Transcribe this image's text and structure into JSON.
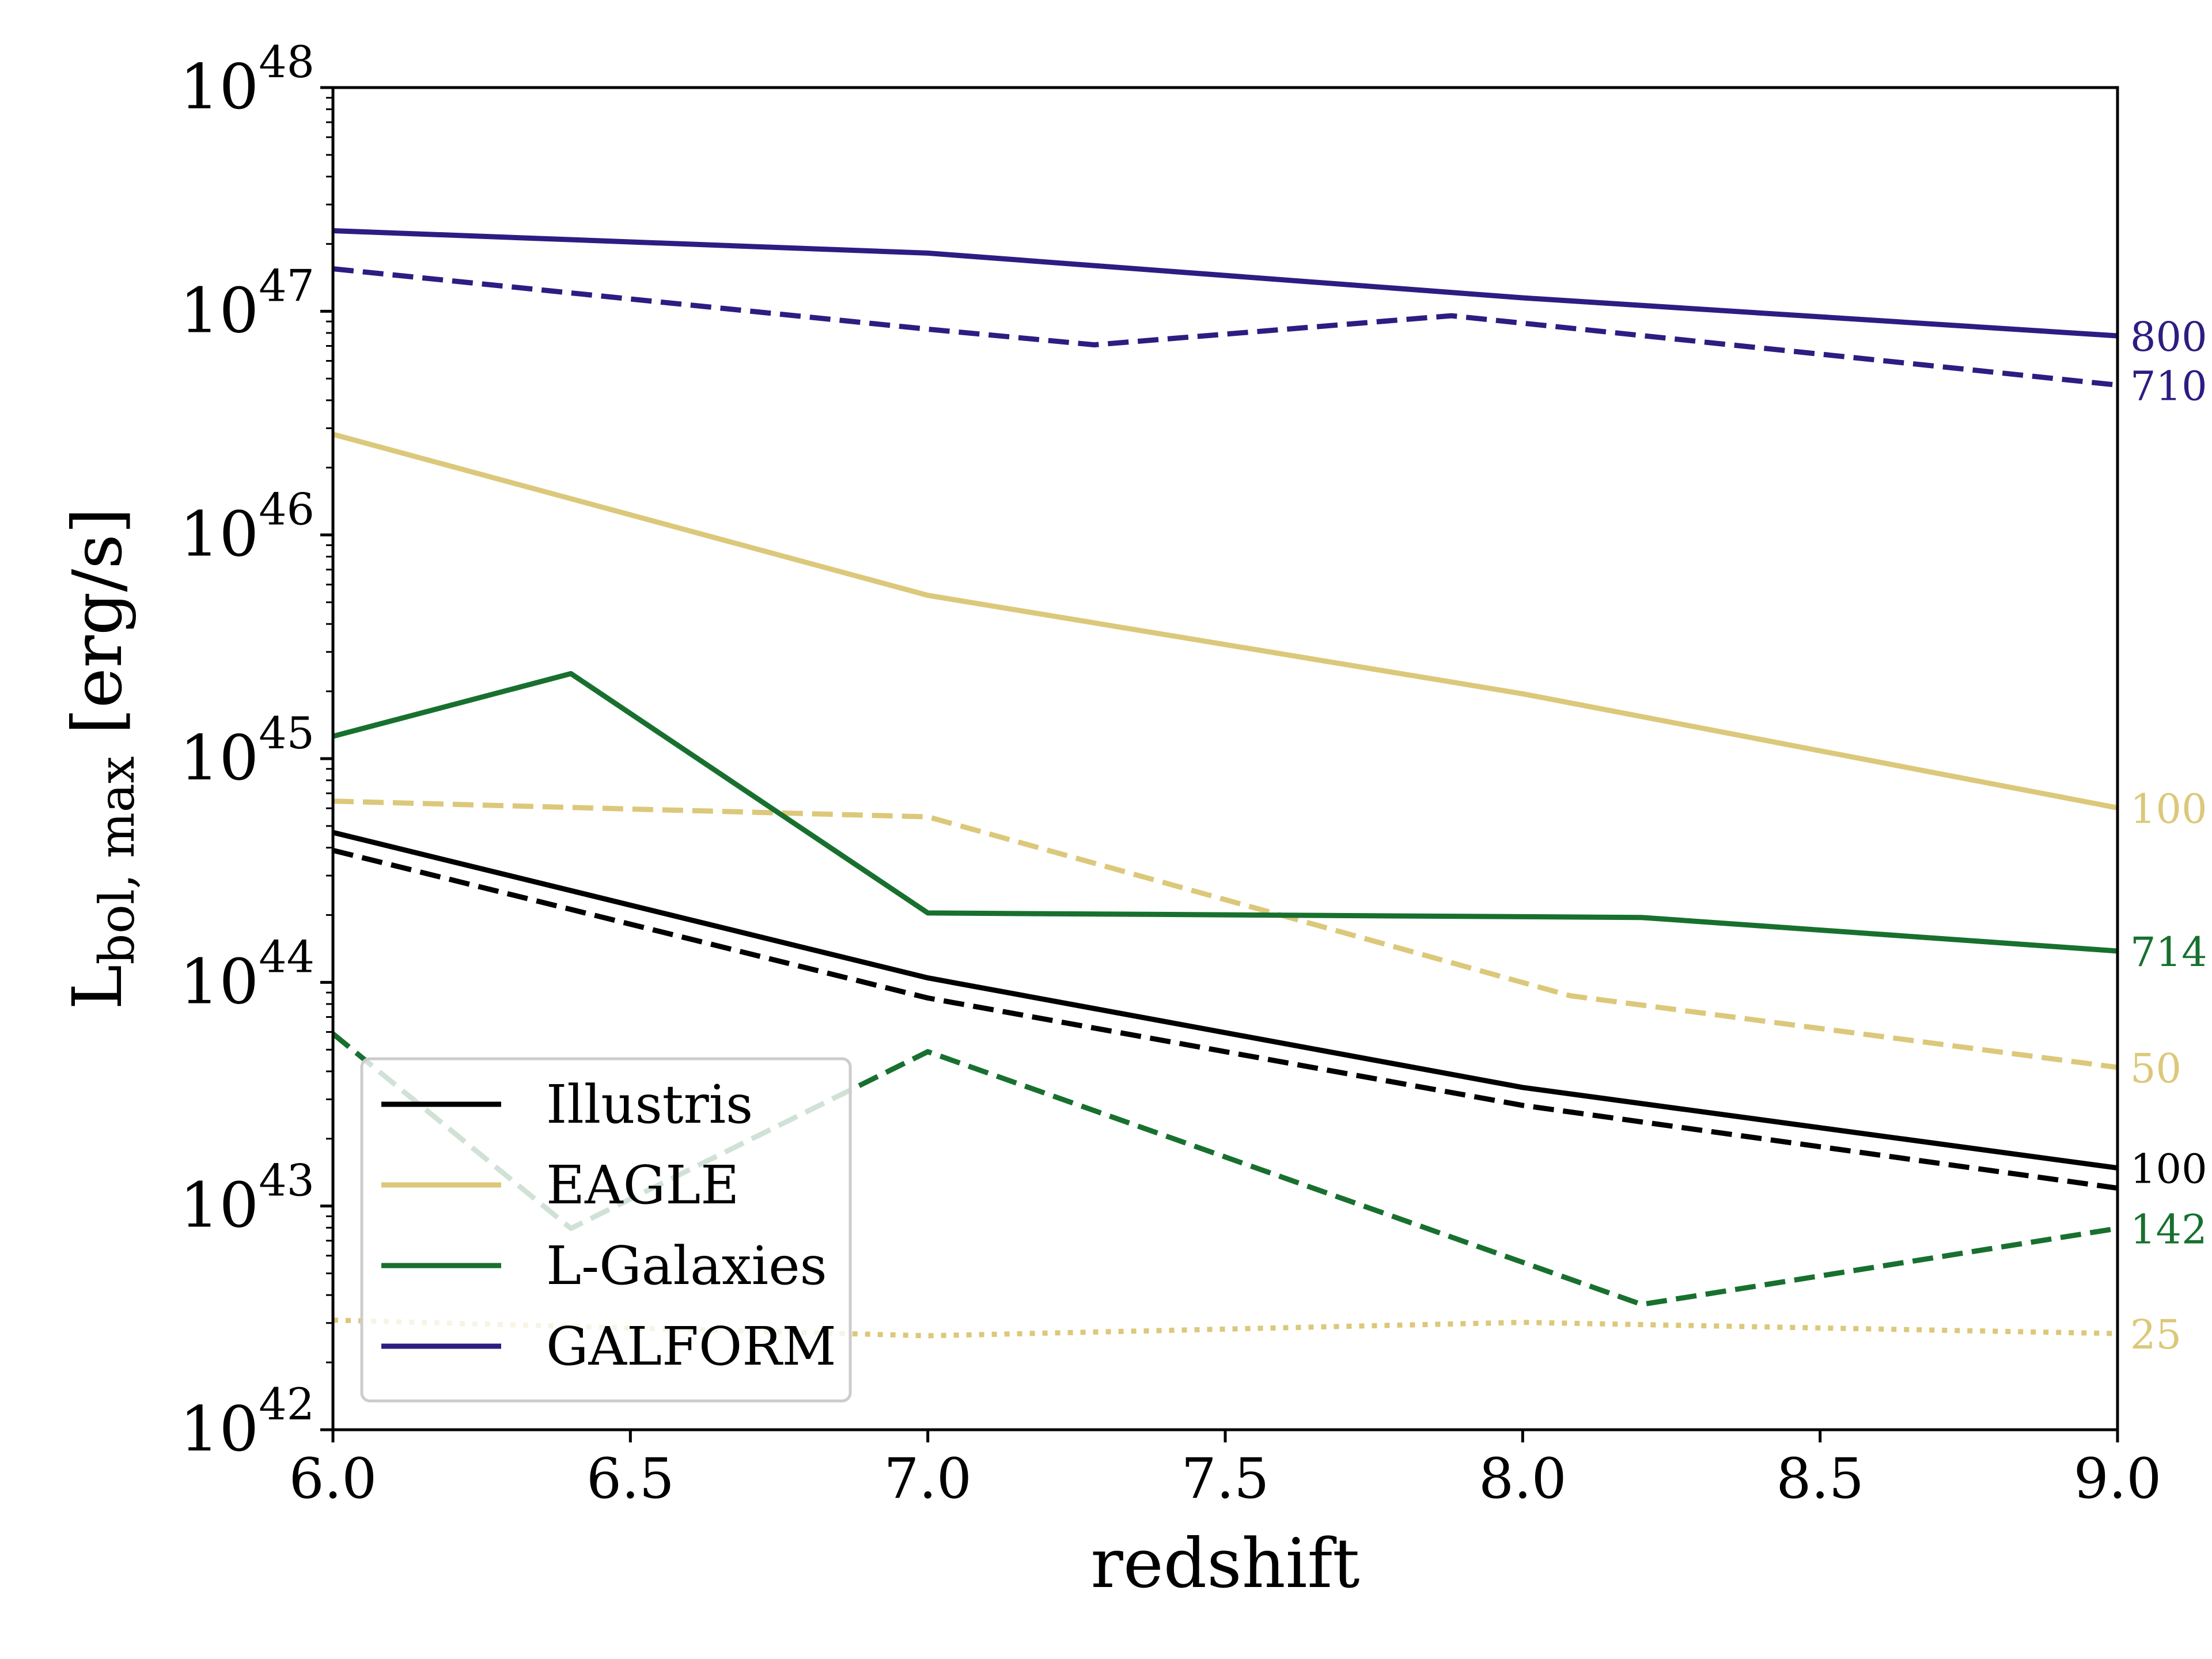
{
  "chart_data": {
    "type": "line",
    "title": "",
    "xlabel": "redshift",
    "ylabel": {
      "base": "L",
      "subscript": "bol, max",
      "unit": " [erg/s]"
    },
    "xlim": [
      6.0,
      9.0
    ],
    "ylim_log10": [
      42,
      48
    ],
    "yscale": "log",
    "x_ticks": [
      {
        "value": 6.0,
        "label": "6.0"
      },
      {
        "value": 6.5,
        "label": "6.5"
      },
      {
        "value": 7.0,
        "label": "7.0"
      },
      {
        "value": 7.5,
        "label": "7.5"
      },
      {
        "value": 8.0,
        "label": "8.0"
      },
      {
        "value": 8.5,
        "label": "8.5"
      },
      {
        "value": 9.0,
        "label": "9.0"
      }
    ],
    "y_ticks": [
      {
        "exp": 42,
        "base": "10",
        "sup": "42"
      },
      {
        "exp": 43,
        "base": "10",
        "sup": "43"
      },
      {
        "exp": 44,
        "base": "10",
        "sup": "44"
      },
      {
        "exp": 45,
        "base": "10",
        "sup": "45"
      },
      {
        "exp": 46,
        "base": "10",
        "sup": "46"
      },
      {
        "exp": 47,
        "base": "10",
        "sup": "47"
      },
      {
        "exp": 48,
        "base": "10",
        "sup": "48"
      }
    ],
    "legend": {
      "position": "lower-left",
      "entries": [
        {
          "name": "Illustris",
          "color": "#000000"
        },
        {
          "name": "EAGLE",
          "color": "#dcc87a"
        },
        {
          "name": "L-Galaxies",
          "color": "#18702f"
        },
        {
          "name": "GALFORM",
          "color": "#2e1c82"
        }
      ]
    },
    "series": [
      {
        "model": "GALFORM",
        "color": "#2e1c82",
        "style": "solid",
        "box_label": "800",
        "x": [
          6.0,
          7.0,
          8.0,
          9.0
        ],
        "log_y": [
          47.36,
          47.26,
          47.06,
          46.89
        ]
      },
      {
        "model": "GALFORM",
        "color": "#2e1c82",
        "style": "dashed",
        "box_label": "710",
        "x": [
          6.0,
          7.0,
          7.28,
          7.88,
          9.0
        ],
        "log_y": [
          47.19,
          46.92,
          46.85,
          46.98,
          46.67
        ]
      },
      {
        "model": "EAGLE",
        "color": "#dcc87a",
        "style": "solid",
        "box_label": "100",
        "x": [
          6.0,
          7.0,
          8.0,
          9.0
        ],
        "log_y": [
          46.45,
          45.73,
          45.29,
          44.78
        ]
      },
      {
        "model": "EAGLE",
        "color": "#dcc87a",
        "style": "dashed",
        "box_label": "50",
        "x": [
          6.0,
          7.0,
          8.08,
          9.0
        ],
        "log_y": [
          44.81,
          44.74,
          43.94,
          43.62
        ]
      },
      {
        "model": "EAGLE",
        "color": "#dcc87a",
        "style": "dotted",
        "box_label": "25",
        "x": [
          6.0,
          7.0,
          8.0,
          9.0
        ],
        "log_y": [
          42.49,
          42.42,
          42.48,
          42.43
        ]
      },
      {
        "model": "L-Galaxies",
        "color": "#18702f",
        "style": "solid",
        "box_label": "714",
        "x": [
          6.0,
          6.4,
          7.0,
          8.2,
          9.0
        ],
        "log_y": [
          45.1,
          45.38,
          44.31,
          44.29,
          44.14
        ]
      },
      {
        "model": "L-Galaxies",
        "color": "#18702f",
        "style": "dashed",
        "box_label": "142",
        "x": [
          6.0,
          6.4,
          7.0,
          8.2,
          9.0
        ],
        "log_y": [
          43.77,
          42.9,
          43.69,
          42.56,
          42.9
        ]
      },
      {
        "model": "Illustris",
        "color": "#000000",
        "style": "solid",
        "box_label": "100",
        "x": [
          6.0,
          7.0,
          8.0,
          9.0
        ],
        "log_y": [
          44.67,
          44.02,
          43.53,
          43.17
        ]
      },
      {
        "model": "Illustris",
        "color": "#000000",
        "style": "dashed",
        "box_label": "",
        "x": [
          6.0,
          7.0,
          8.0,
          9.0
        ],
        "log_y": [
          44.59,
          43.93,
          43.45,
          43.08
        ]
      }
    ]
  }
}
